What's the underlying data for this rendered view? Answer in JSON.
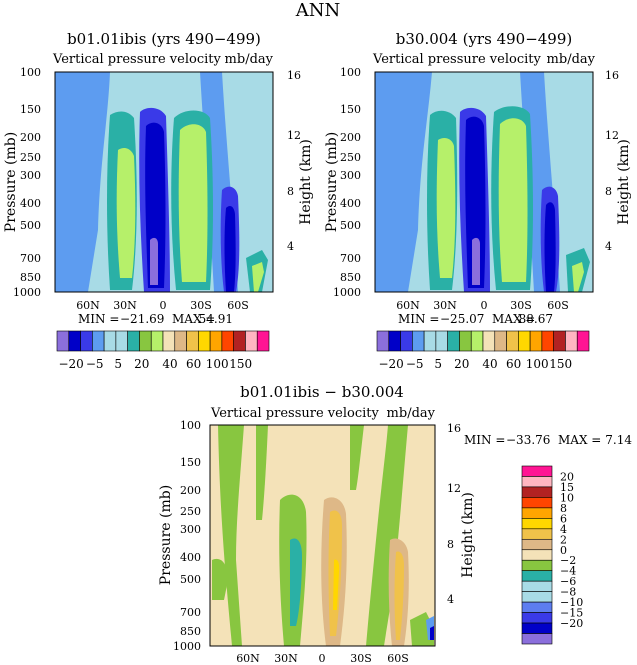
{
  "page_title": "ANN",
  "colors": {
    "c_m20": "#8b6fdc",
    "c_m15": "#0000c8",
    "c_m10": "#3a3ae8",
    "c_m8": "#5d7df0",
    "c_m6": "#a8dbe6",
    "c_m4": "#2ab0a6",
    "c_m2": "#88c640",
    "c_0": "#f4e2b8",
    "c_2": "#deb887",
    "c_4": "#f0c24a",
    "c_6": "#ffd700",
    "c_8": "#ffa500",
    "c_10": "#ff4500",
    "c_15": "#b22222",
    "c_20": "#ffb6c1",
    "c_top": "#ff1493",
    "c_fill_light": "#a8dbe6",
    "c_fill_mid": "#5d9cf0",
    "c_green": "#b6f06a"
  },
  "chart_data": [
    {
      "type": "heatmap",
      "title": "b01.01ibis (yrs 490−499)",
      "subtitle": "Vertical pressure velocity",
      "units": "mb/day",
      "ylabel": "Pressure (mb)",
      "ylabel_right": "Height (km)",
      "y_ticks": [
        "100",
        "150",
        "200",
        "250",
        "300",
        "400",
        "500",
        "700",
        "850",
        "1000"
      ],
      "y_right_ticks": [
        "16",
        "12",
        "8",
        "4"
      ],
      "x_ticks": [
        "60N",
        "30N",
        "0",
        "30S",
        "60S"
      ],
      "stats": {
        "min_label": "MIN =",
        "min": "−21.69",
        "max_label": "MAX =",
        "max": "54.91"
      },
      "colorbar_labels": [
        "−20",
        "−5",
        "5",
        "20",
        "40",
        "60",
        "100",
        "150"
      ]
    },
    {
      "type": "heatmap",
      "title": "b30.004 (yrs 490−499)",
      "subtitle": "Vertical pressure velocity",
      "units": "mb/day",
      "ylabel": "Pressure (mb)",
      "ylabel_right": "Height (km)",
      "y_ticks": [
        "100",
        "150",
        "200",
        "250",
        "300",
        "400",
        "500",
        "700",
        "850",
        "1000"
      ],
      "y_right_ticks": [
        "16",
        "12",
        "8",
        "4"
      ],
      "x_ticks": [
        "60N",
        "30N",
        "0",
        "30S",
        "60S"
      ],
      "stats": {
        "min_label": "MIN =",
        "min": "−25.07",
        "max_label": "MAX =",
        "max": "88.67"
      },
      "colorbar_labels": [
        "−20",
        "−5",
        "5",
        "20",
        "40",
        "60",
        "100",
        "150"
      ]
    },
    {
      "type": "heatmap",
      "title": "b01.01ibis − b30.004",
      "subtitle": "Vertical pressure velocity",
      "units": "mb/day",
      "ylabel": "Pressure (mb)",
      "ylabel_right": "Height (km)",
      "y_ticks": [
        "100",
        "150",
        "200",
        "250",
        "300",
        "400",
        "500",
        "700",
        "850",
        "1000"
      ],
      "y_right_ticks": [
        "16",
        "12",
        "8",
        "4"
      ],
      "x_ticks": [
        "60N",
        "30N",
        "0",
        "30S",
        "60S"
      ],
      "stats": {
        "min_label": "MIN =",
        "min": "−33.76",
        "max_label": "MAX =",
        "max": "7.14"
      },
      "colorbar_labels": [
        "20",
        "15",
        "10",
        "8",
        "6",
        "4",
        "2",
        "0",
        "−2",
        "−4",
        "−6",
        "−8",
        "−10",
        "−15",
        "−20"
      ]
    }
  ]
}
